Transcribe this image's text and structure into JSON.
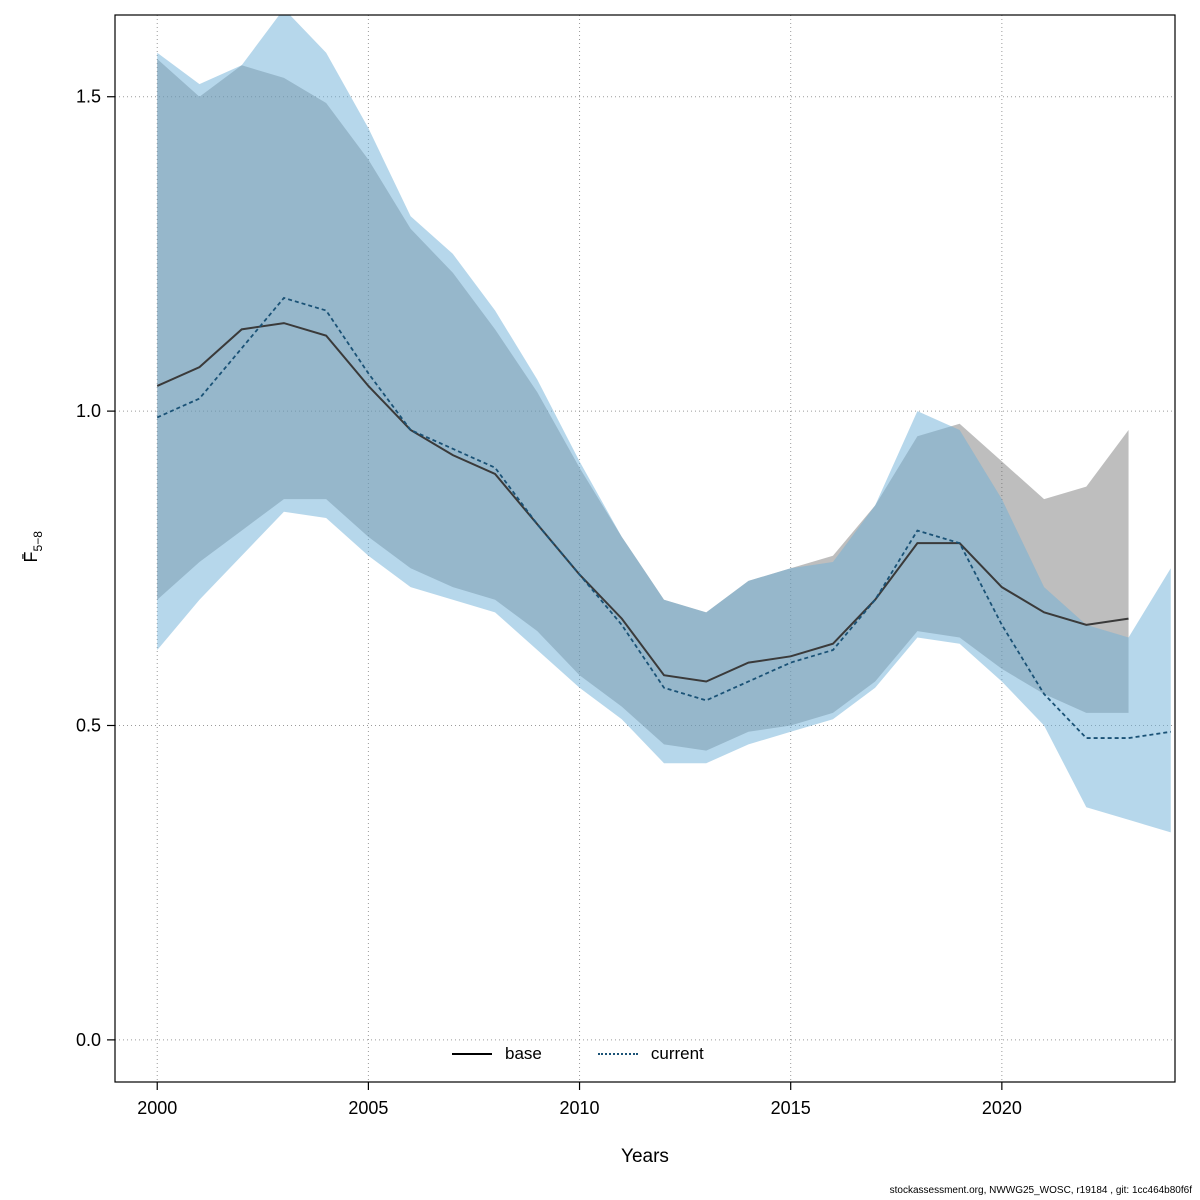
{
  "footer": "stockassessment.org, NWWG25_WOSC, r19184 , git: 1cc464b80f6f",
  "chart_data": {
    "type": "line",
    "title": "",
    "xlabel": "Years",
    "ylabel": "F̄5−8",
    "ylabel_main": "F̄",
    "ylabel_sub": "5−8",
    "xlim": [
      1999.0,
      2024.1
    ],
    "ylim": [
      -0.067,
      1.63
    ],
    "xticks": [
      2000,
      2005,
      2010,
      2015,
      2020
    ],
    "xtick_labels": [
      "2000",
      "2005",
      "2010",
      "2015",
      "2020"
    ],
    "yticks": [
      0.0,
      0.5,
      1.0,
      1.5
    ],
    "ytick_labels": [
      "0.0",
      "0.5",
      "1.0",
      "1.5"
    ],
    "grid": true,
    "grid_color": "#9a9a9a",
    "legend_position": "bottom-center-inside",
    "series": [
      {
        "name": "base",
        "color": "#3a3a3a",
        "legend_color": "#000000",
        "band_color": "rgba(100,100,100,0.42)",
        "line_style": "solid",
        "width": 2,
        "x": [
          2000,
          2001,
          2002,
          2003,
          2004,
          2005,
          2006,
          2007,
          2008,
          2009,
          2010,
          2011,
          2012,
          2013,
          2014,
          2015,
          2016,
          2017,
          2018,
          2019,
          2020,
          2021,
          2022,
          2023
        ],
        "y": [
          1.04,
          1.07,
          1.13,
          1.14,
          1.12,
          1.04,
          0.97,
          0.93,
          0.9,
          0.82,
          0.74,
          0.67,
          0.58,
          0.57,
          0.6,
          0.61,
          0.63,
          0.7,
          0.79,
          0.79,
          0.72,
          0.68,
          0.66,
          0.67
        ],
        "lower": [
          0.7,
          0.76,
          0.81,
          0.86,
          0.86,
          0.8,
          0.75,
          0.72,
          0.7,
          0.65,
          0.58,
          0.53,
          0.47,
          0.46,
          0.49,
          0.5,
          0.52,
          0.57,
          0.65,
          0.64,
          0.59,
          0.55,
          0.52,
          0.52
        ],
        "upper": [
          1.56,
          1.5,
          1.55,
          1.53,
          1.49,
          1.4,
          1.29,
          1.22,
          1.13,
          1.03,
          0.91,
          0.8,
          0.7,
          0.68,
          0.73,
          0.75,
          0.77,
          0.85,
          0.96,
          0.98,
          0.92,
          0.86,
          0.88,
          0.97
        ]
      },
      {
        "name": "current",
        "color": "#1a5276",
        "legend_color": "#1a5276",
        "band_color": "rgba(110,175,215,0.50)",
        "line_style": "dotted",
        "width": 1.8,
        "dash": "4 3",
        "x": [
          2000,
          2001,
          2002,
          2003,
          2004,
          2005,
          2006,
          2007,
          2008,
          2009,
          2010,
          2011,
          2012,
          2013,
          2014,
          2015,
          2016,
          2017,
          2018,
          2019,
          2020,
          2021,
          2022,
          2023,
          2024
        ],
        "y": [
          0.99,
          1.02,
          1.1,
          1.18,
          1.16,
          1.06,
          0.97,
          0.94,
          0.91,
          0.82,
          0.74,
          0.66,
          0.56,
          0.54,
          0.57,
          0.6,
          0.62,
          0.7,
          0.81,
          0.79,
          0.66,
          0.55,
          0.48,
          0.48,
          0.49
        ],
        "lower": [
          0.62,
          0.7,
          0.77,
          0.84,
          0.83,
          0.77,
          0.72,
          0.7,
          0.68,
          0.62,
          0.56,
          0.51,
          0.44,
          0.44,
          0.47,
          0.49,
          0.51,
          0.56,
          0.64,
          0.63,
          0.57,
          0.5,
          0.37,
          0.35,
          0.33
        ],
        "upper": [
          1.57,
          1.52,
          1.55,
          1.64,
          1.57,
          1.45,
          1.31,
          1.25,
          1.16,
          1.05,
          0.92,
          0.8,
          0.7,
          0.68,
          0.73,
          0.75,
          0.76,
          0.85,
          1.0,
          0.97,
          0.86,
          0.72,
          0.66,
          0.64,
          0.75
        ]
      }
    ]
  }
}
